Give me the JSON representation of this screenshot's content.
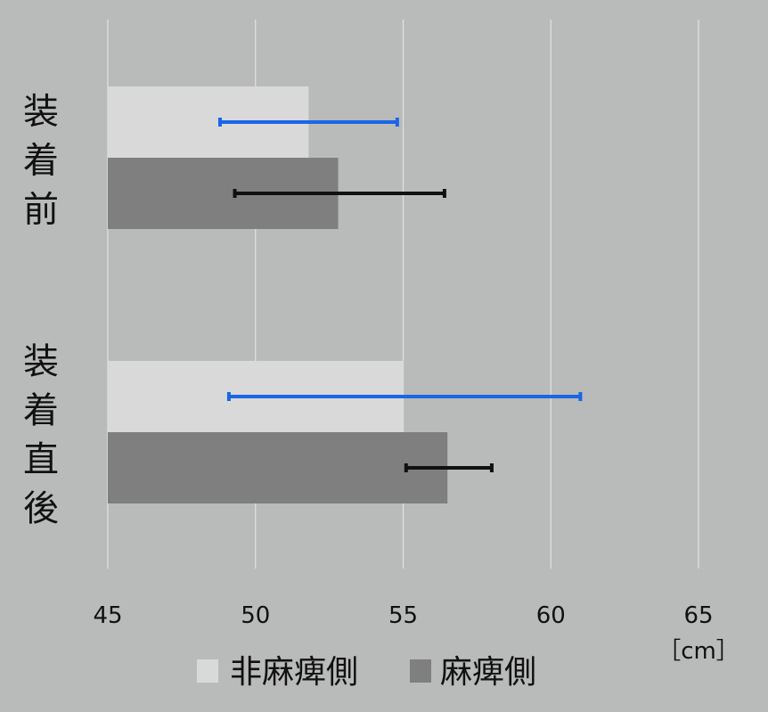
{
  "chart_data": {
    "type": "bar",
    "orientation": "horizontal",
    "categories": [
      "装着前",
      "装着直後"
    ],
    "series": [
      {
        "name": "非麻痺側",
        "values": [
          51.8,
          55.0
        ],
        "error_low": [
          48.8,
          49.1
        ],
        "error_high": [
          54.8,
          61.0
        ],
        "color": "#d9d9d9",
        "error_color": "#1a66e6"
      },
      {
        "name": "麻痺側",
        "values": [
          52.8,
          56.5
        ],
        "error_low": [
          49.3,
          55.1
        ],
        "error_high": [
          56.4,
          58.0
        ],
        "color": "#7f7f7f",
        "error_color": "#111111"
      }
    ],
    "xlim": [
      45,
      65
    ],
    "xticks": [
      45,
      50,
      55,
      60,
      65
    ],
    "unit": "［cm］",
    "grid": true,
    "legend_position": "bottom"
  }
}
